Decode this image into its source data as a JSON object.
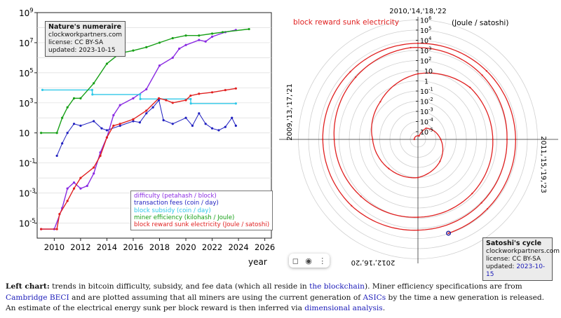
{
  "chart_data": [
    {
      "type": "line",
      "xlabel": "year",
      "xlim": [
        2008.7,
        2026.5
      ],
      "ylim_log10": [
        -6,
        9
      ],
      "y_scale": "log",
      "x_ticks": [
        "2010",
        "2012",
        "2014",
        "2016",
        "2018",
        "2020",
        "2022",
        "2024",
        "2026"
      ],
      "y_ticks": [
        {
          "label": "10",
          "sup": "9",
          "exp": 9
        },
        {
          "label": "10",
          "sup": "7",
          "exp": 7
        },
        {
          "label": "10",
          "sup": "5",
          "exp": 5
        },
        {
          "label": "10",
          "sup": "3",
          "exp": 3
        },
        {
          "label": "10",
          "sup": "",
          "exp": 1
        },
        {
          "label": "10",
          "sup": "-1",
          "exp": -1
        },
        {
          "label": "10",
          "sup": "-3",
          "exp": -3
        },
        {
          "label": "10",
          "sup": "-5",
          "exp": -5
        }
      ],
      "grid": true,
      "info_box": {
        "title": "Nature's numeraire",
        "line1": "clockworkpartners.com",
        "line2": "license: CC BY-SA",
        "line3": "updated: 2023-10-15"
      },
      "legend_position": "bottom-right",
      "series": [
        {
          "name": "difficulty (petahash / block)",
          "color": "#8a2be2",
          "x": [
            2009.0,
            2010.0,
            2010.6,
            2011.0,
            2011.5,
            2012.0,
            2012.5,
            2013.0,
            2013.5,
            2014.0,
            2014.5,
            2015.0,
            2016.0,
            2017.0,
            2018.0,
            2019.0,
            2019.5,
            2020.0,
            2021.0,
            2021.5,
            2022.0,
            2023.0,
            2023.8
          ],
          "y": [
            4e-06,
            4e-06,
            0.0001,
            0.002,
            0.005,
            0.002,
            0.003,
            0.02,
            0.5,
            5,
            150,
            700,
            2000,
            8000,
            300000.0,
            1000000.0,
            4000000.0,
            7000000.0,
            15000000.0,
            12000000.0,
            25000000.0,
            50000000.0,
            70000000.0
          ]
        },
        {
          "name": "transaction fees (coin / day)",
          "color": "#2020c0",
          "x": [
            2010.2,
            2010.6,
            2011.0,
            2011.5,
            2012.0,
            2013.0,
            2013.6,
            2014.0,
            2015.0,
            2016.0,
            2016.5,
            2017.0,
            2017.5,
            2017.95,
            2018.3,
            2019.0,
            2020.0,
            2020.5,
            2021.0,
            2021.5,
            2022.0,
            2022.5,
            2023.0,
            2023.5,
            2023.8
          ],
          "y": [
            0.3,
            2,
            10,
            40,
            30,
            60,
            20,
            15,
            30,
            60,
            50,
            200,
            500,
            1500,
            70,
            40,
            100,
            30,
            200,
            40,
            20,
            15,
            25,
            100,
            30
          ]
        },
        {
          "name": "block subsidy (coin / day)",
          "color": "#30c8e8",
          "x": [
            2009.1,
            2012.88,
            2012.9,
            2016.52,
            2016.54,
            2020.36,
            2020.38,
            2023.8
          ],
          "y": [
            7200,
            7200,
            3600,
            3600,
            1800,
            1800,
            900,
            900
          ]
        },
        {
          "name": "miner efficiency (kilohash / Joule)",
          "color": "#18a018",
          "x": [
            2009.0,
            2010.2,
            2010.6,
            2011.0,
            2011.5,
            2012.0,
            2013.0,
            2014.0,
            2015.0,
            2016.0,
            2017.0,
            2018.0,
            2019.0,
            2020.0,
            2021.0,
            2022.0,
            2022.8,
            2024.8
          ],
          "y": [
            10,
            10,
            100,
            500,
            2000,
            2000,
            20000,
            400000.0,
            2000000.0,
            3000000.0,
            5000000.0,
            10000000.0,
            20000000.0,
            30000000.0,
            30000000.0,
            40000000.0,
            50000000.0,
            80000000.0
          ]
        },
        {
          "name": "block reward sunk electricity (Joule / satoshi)",
          "color": "#e02020",
          "x": [
            2009.0,
            2010.2,
            2010.4,
            2011.0,
            2011.5,
            2012.0,
            2013.0,
            2013.5,
            2014.0,
            2014.5,
            2015.0,
            2016.0,
            2017.0,
            2017.95,
            2018.5,
            2019.0,
            2020.0,
            2020.36,
            2021.0,
            2022.0,
            2023.0,
            2023.8
          ],
          "y": [
            4e-06,
            4e-06,
            4e-05,
            0.0003,
            0.002,
            0.01,
            0.05,
            0.3,
            5,
            30,
            40,
            80,
            300,
            2000,
            1500,
            1000,
            1500,
            3000,
            4000,
            5000,
            7000,
            9000
          ]
        }
      ]
    },
    {
      "type": "polar",
      "title": "block reward sunk electricity",
      "radial_scale": "log",
      "unit_label": "(Joule / satoshi)",
      "radial_ticks": [
        {
          "label": "10",
          "sup": "6",
          "exp": 6
        },
        {
          "label": "10",
          "sup": "5",
          "exp": 5
        },
        {
          "label": "10",
          "sup": "4",
          "exp": 4
        },
        {
          "label": "10",
          "sup": "3",
          "exp": 3
        },
        {
          "label": "10",
          "sup": "2",
          "exp": 2
        },
        {
          "label": "10",
          "sup": "",
          "exp": 1
        },
        {
          "label": "1",
          "sup": "",
          "exp": 0
        },
        {
          "label": "10",
          "sup": "-1",
          "exp": -1
        },
        {
          "label": "10",
          "sup": "-2",
          "exp": -2
        },
        {
          "label": "10",
          "sup": "-3",
          "exp": -3
        },
        {
          "label": "10",
          "sup": "-4",
          "exp": -4
        },
        {
          "label": "10",
          "sup": "-5",
          "exp": -5
        }
      ],
      "axis_labels": {
        "top": "2010,'14,'18,'22",
        "right": "2011,'15,'19,'23",
        "bottom": "2012,'16,'20",
        "left": "2009,'13,'17,'21"
      },
      "cycle_years": 4,
      "cycle_start_year": 2009.0,
      "series": [
        {
          "name": "block reward sunk electricity",
          "color": "#e02020",
          "t": [
            2009.0,
            2010.2,
            2010.4,
            2011.0,
            2011.5,
            2012.0,
            2012.5,
            2013.0,
            2013.5,
            2014.0,
            2014.5,
            2015.0,
            2015.5,
            2016.0,
            2016.5,
            2017.0,
            2017.5,
            2017.95,
            2018.5,
            2019.0,
            2019.5,
            2020.0,
            2020.5,
            2021.0,
            2021.5,
            2022.0,
            2022.5,
            2023.0,
            2023.5,
            2023.8
          ],
          "y": [
            4e-06,
            4e-06,
            4e-05,
            0.0003,
            0.002,
            0.01,
            0.02,
            0.05,
            0.3,
            5,
            30,
            40,
            60,
            80,
            150,
            300,
            800,
            2000,
            1500,
            1000,
            1200,
            1500,
            3000,
            4000,
            4500,
            5000,
            6000,
            7000,
            8000,
            9000
          ]
        }
      ],
      "marker": {
        "t": 2023.8,
        "color": "#2020a0"
      },
      "info_box": {
        "title": "Satoshi's cycle",
        "line1": "clockworkpartners.com",
        "line2": "license: CC BY-SA",
        "line3_prefix": "updated: ",
        "line3_date": "2023-10-15"
      }
    }
  ],
  "toolbar": {
    "bookmark_icon": "bookmark-icon",
    "camera_icon": "camera-icon",
    "menu_icon": "more-vertical-icon"
  },
  "caption": {
    "bold": "Left chart:",
    "t1": " trends in bitcoin difficulty, subsidy, and fee data (which all reside in ",
    "l1": "the blockchain",
    "t2": "). Miner efficiency specifications are from ",
    "l2": "Cambridge BECI",
    "t3": " and are plotted assuming that all miners are using the current generation of ",
    "l3": "ASICs",
    "t4": " by the time a new generation is released. An estimate of the electrical energy sunk per block reward is then inferred via ",
    "l4": "dimensional analysis",
    "t5": "."
  }
}
